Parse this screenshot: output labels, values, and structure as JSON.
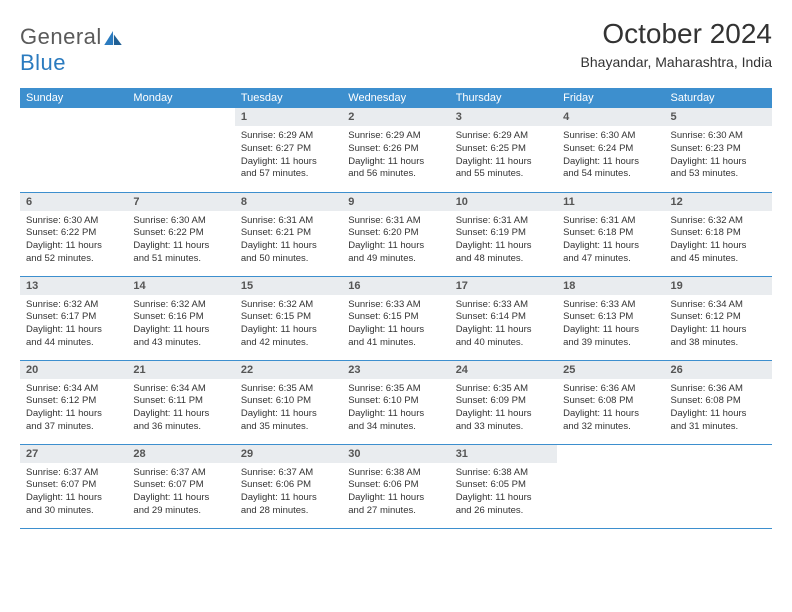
{
  "brand": {
    "part1": "General",
    "part2": "Blue"
  },
  "title": "October 2024",
  "location": "Bhayandar, Maharashtra, India",
  "colors": {
    "header_bg": "#3d8fce",
    "header_text": "#ffffff",
    "daynum_bg": "#e9ecef",
    "border": "#3d8fce",
    "text": "#333333",
    "brand_gray": "#5a5a5a",
    "brand_blue": "#2b7bbf"
  },
  "weekdays": [
    "Sunday",
    "Monday",
    "Tuesday",
    "Wednesday",
    "Thursday",
    "Friday",
    "Saturday"
  ],
  "weeks": [
    [
      {
        "n": "",
        "sr": "",
        "ss": "",
        "d1": "",
        "d2": ""
      },
      {
        "n": "",
        "sr": "",
        "ss": "",
        "d1": "",
        "d2": ""
      },
      {
        "n": "1",
        "sr": "Sunrise: 6:29 AM",
        "ss": "Sunset: 6:27 PM",
        "d1": "Daylight: 11 hours",
        "d2": "and 57 minutes."
      },
      {
        "n": "2",
        "sr": "Sunrise: 6:29 AM",
        "ss": "Sunset: 6:26 PM",
        "d1": "Daylight: 11 hours",
        "d2": "and 56 minutes."
      },
      {
        "n": "3",
        "sr": "Sunrise: 6:29 AM",
        "ss": "Sunset: 6:25 PM",
        "d1": "Daylight: 11 hours",
        "d2": "and 55 minutes."
      },
      {
        "n": "4",
        "sr": "Sunrise: 6:30 AM",
        "ss": "Sunset: 6:24 PM",
        "d1": "Daylight: 11 hours",
        "d2": "and 54 minutes."
      },
      {
        "n": "5",
        "sr": "Sunrise: 6:30 AM",
        "ss": "Sunset: 6:23 PM",
        "d1": "Daylight: 11 hours",
        "d2": "and 53 minutes."
      }
    ],
    [
      {
        "n": "6",
        "sr": "Sunrise: 6:30 AM",
        "ss": "Sunset: 6:22 PM",
        "d1": "Daylight: 11 hours",
        "d2": "and 52 minutes."
      },
      {
        "n": "7",
        "sr": "Sunrise: 6:30 AM",
        "ss": "Sunset: 6:22 PM",
        "d1": "Daylight: 11 hours",
        "d2": "and 51 minutes."
      },
      {
        "n": "8",
        "sr": "Sunrise: 6:31 AM",
        "ss": "Sunset: 6:21 PM",
        "d1": "Daylight: 11 hours",
        "d2": "and 50 minutes."
      },
      {
        "n": "9",
        "sr": "Sunrise: 6:31 AM",
        "ss": "Sunset: 6:20 PM",
        "d1": "Daylight: 11 hours",
        "d2": "and 49 minutes."
      },
      {
        "n": "10",
        "sr": "Sunrise: 6:31 AM",
        "ss": "Sunset: 6:19 PM",
        "d1": "Daylight: 11 hours",
        "d2": "and 48 minutes."
      },
      {
        "n": "11",
        "sr": "Sunrise: 6:31 AM",
        "ss": "Sunset: 6:18 PM",
        "d1": "Daylight: 11 hours",
        "d2": "and 47 minutes."
      },
      {
        "n": "12",
        "sr": "Sunrise: 6:32 AM",
        "ss": "Sunset: 6:18 PM",
        "d1": "Daylight: 11 hours",
        "d2": "and 45 minutes."
      }
    ],
    [
      {
        "n": "13",
        "sr": "Sunrise: 6:32 AM",
        "ss": "Sunset: 6:17 PM",
        "d1": "Daylight: 11 hours",
        "d2": "and 44 minutes."
      },
      {
        "n": "14",
        "sr": "Sunrise: 6:32 AM",
        "ss": "Sunset: 6:16 PM",
        "d1": "Daylight: 11 hours",
        "d2": "and 43 minutes."
      },
      {
        "n": "15",
        "sr": "Sunrise: 6:32 AM",
        "ss": "Sunset: 6:15 PM",
        "d1": "Daylight: 11 hours",
        "d2": "and 42 minutes."
      },
      {
        "n": "16",
        "sr": "Sunrise: 6:33 AM",
        "ss": "Sunset: 6:15 PM",
        "d1": "Daylight: 11 hours",
        "d2": "and 41 minutes."
      },
      {
        "n": "17",
        "sr": "Sunrise: 6:33 AM",
        "ss": "Sunset: 6:14 PM",
        "d1": "Daylight: 11 hours",
        "d2": "and 40 minutes."
      },
      {
        "n": "18",
        "sr": "Sunrise: 6:33 AM",
        "ss": "Sunset: 6:13 PM",
        "d1": "Daylight: 11 hours",
        "d2": "and 39 minutes."
      },
      {
        "n": "19",
        "sr": "Sunrise: 6:34 AM",
        "ss": "Sunset: 6:12 PM",
        "d1": "Daylight: 11 hours",
        "d2": "and 38 minutes."
      }
    ],
    [
      {
        "n": "20",
        "sr": "Sunrise: 6:34 AM",
        "ss": "Sunset: 6:12 PM",
        "d1": "Daylight: 11 hours",
        "d2": "and 37 minutes."
      },
      {
        "n": "21",
        "sr": "Sunrise: 6:34 AM",
        "ss": "Sunset: 6:11 PM",
        "d1": "Daylight: 11 hours",
        "d2": "and 36 minutes."
      },
      {
        "n": "22",
        "sr": "Sunrise: 6:35 AM",
        "ss": "Sunset: 6:10 PM",
        "d1": "Daylight: 11 hours",
        "d2": "and 35 minutes."
      },
      {
        "n": "23",
        "sr": "Sunrise: 6:35 AM",
        "ss": "Sunset: 6:10 PM",
        "d1": "Daylight: 11 hours",
        "d2": "and 34 minutes."
      },
      {
        "n": "24",
        "sr": "Sunrise: 6:35 AM",
        "ss": "Sunset: 6:09 PM",
        "d1": "Daylight: 11 hours",
        "d2": "and 33 minutes."
      },
      {
        "n": "25",
        "sr": "Sunrise: 6:36 AM",
        "ss": "Sunset: 6:08 PM",
        "d1": "Daylight: 11 hours",
        "d2": "and 32 minutes."
      },
      {
        "n": "26",
        "sr": "Sunrise: 6:36 AM",
        "ss": "Sunset: 6:08 PM",
        "d1": "Daylight: 11 hours",
        "d2": "and 31 minutes."
      }
    ],
    [
      {
        "n": "27",
        "sr": "Sunrise: 6:37 AM",
        "ss": "Sunset: 6:07 PM",
        "d1": "Daylight: 11 hours",
        "d2": "and 30 minutes."
      },
      {
        "n": "28",
        "sr": "Sunrise: 6:37 AM",
        "ss": "Sunset: 6:07 PM",
        "d1": "Daylight: 11 hours",
        "d2": "and 29 minutes."
      },
      {
        "n": "29",
        "sr": "Sunrise: 6:37 AM",
        "ss": "Sunset: 6:06 PM",
        "d1": "Daylight: 11 hours",
        "d2": "and 28 minutes."
      },
      {
        "n": "30",
        "sr": "Sunrise: 6:38 AM",
        "ss": "Sunset: 6:06 PM",
        "d1": "Daylight: 11 hours",
        "d2": "and 27 minutes."
      },
      {
        "n": "31",
        "sr": "Sunrise: 6:38 AM",
        "ss": "Sunset: 6:05 PM",
        "d1": "Daylight: 11 hours",
        "d2": "and 26 minutes."
      },
      {
        "n": "",
        "sr": "",
        "ss": "",
        "d1": "",
        "d2": ""
      },
      {
        "n": "",
        "sr": "",
        "ss": "",
        "d1": "",
        "d2": ""
      }
    ]
  ]
}
